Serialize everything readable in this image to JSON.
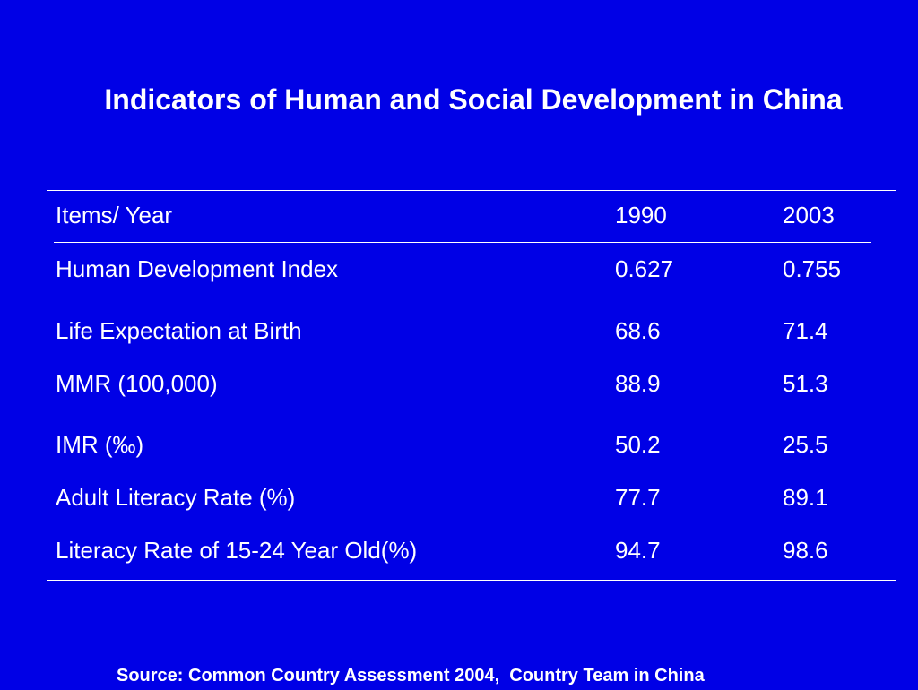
{
  "slide": {
    "title": "Indicators of Human and Social Development in China",
    "source": "Source: Common Country Assessment 2004,  Country Team in China",
    "colors": {
      "background": "#0000e6",
      "text": "#ffffff"
    }
  },
  "table": {
    "header": {
      "item": "Items/ Year",
      "y1990": "1990",
      "y2003": "2003"
    },
    "rows": [
      {
        "item": "Human Development Index",
        "y1990": "0.627",
        "y2003": "0.755"
      },
      {
        "item": "Life Expectation at Birth",
        "y1990": "68.6",
        "y2003": "71.4"
      },
      {
        "item": "MMR (100,000)",
        "y1990": "88.9",
        "y2003": "51.3"
      },
      {
        "item": "IMR (‰)",
        "y1990": "50.2",
        "y2003": "25.5"
      },
      {
        "item": "Adult Literacy Rate (%)",
        "y1990": "77.7",
        "y2003": "89.1"
      },
      {
        "item": "Literacy Rate of 15-24 Year Old(%)",
        "y1990": "94.7",
        "y2003": "98.6"
      }
    ]
  }
}
